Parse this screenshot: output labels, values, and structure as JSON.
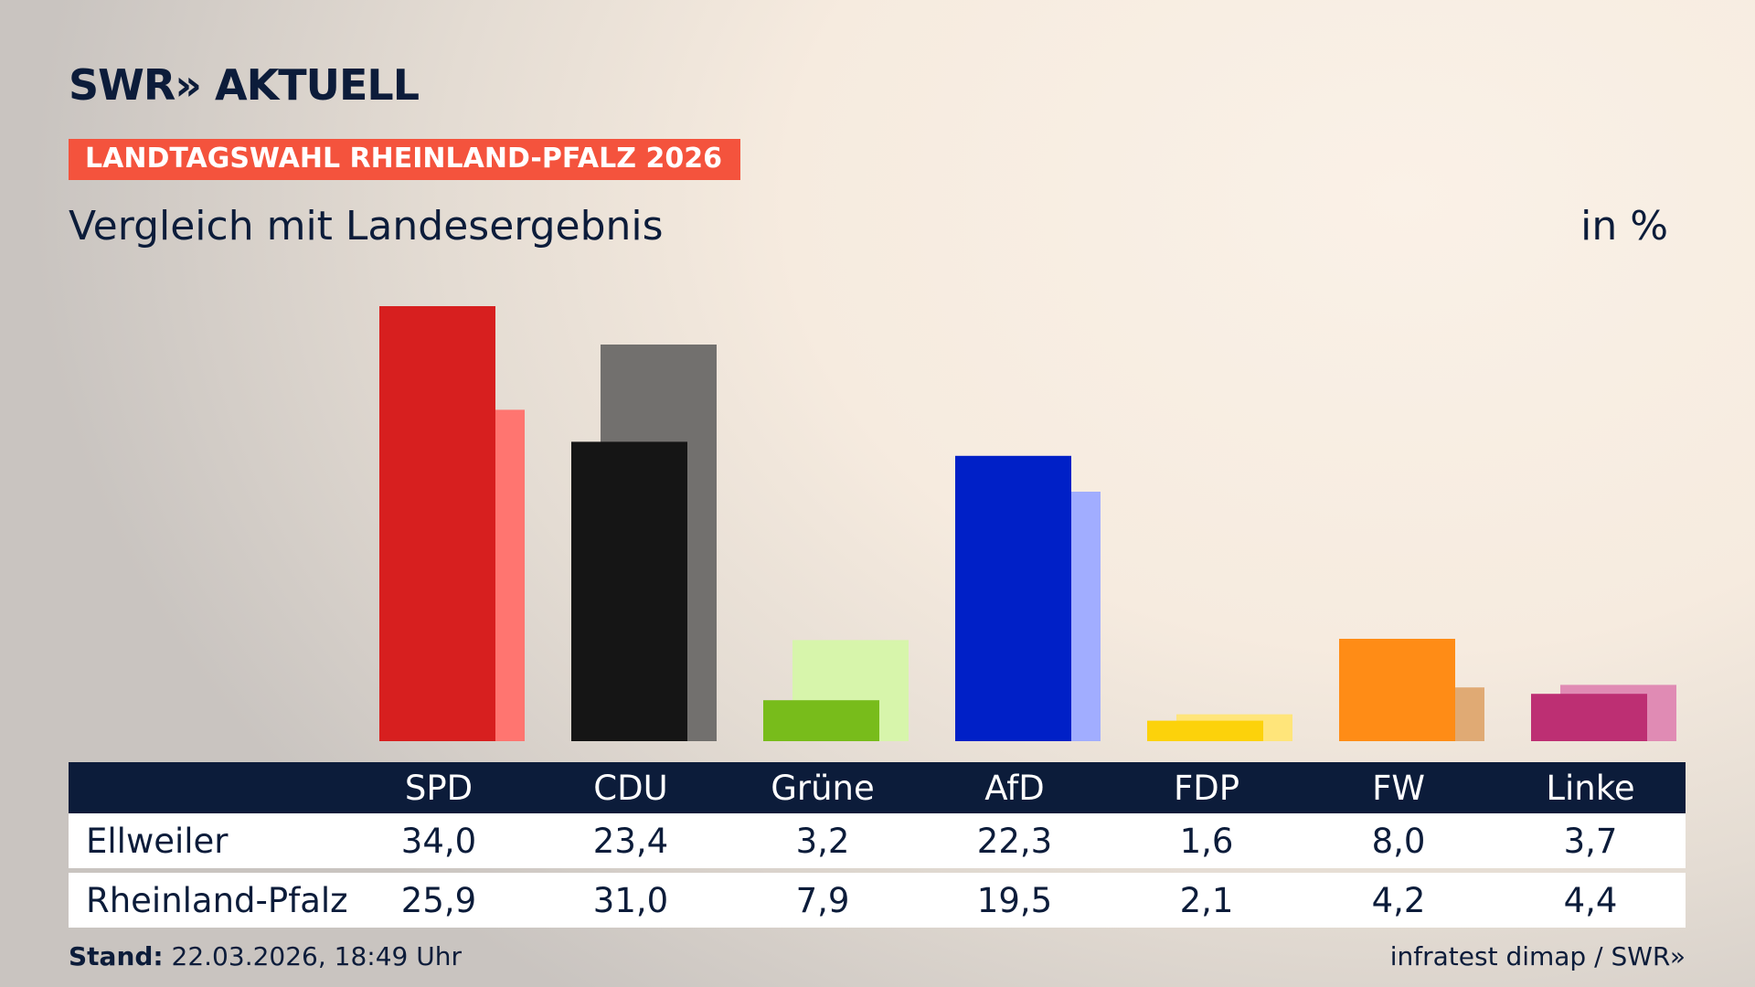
{
  "chart_data": {
    "type": "bar",
    "brand": "SWR» AKTUELL",
    "kicker": "LANDTAGSWAHL RHEINLAND-PFALZ 2026",
    "title": "Vergleich mit Landesergebnis",
    "unit_label": "in %",
    "categories": [
      "SPD",
      "CDU",
      "Grüne",
      "AfD",
      "FDP",
      "FW",
      "Linke"
    ],
    "series": [
      {
        "name": "Ellweiler",
        "colors": [
          "#d71f1f",
          "#151515",
          "#78bc1b",
          "#0020c7",
          "#fcd20b",
          "#ff8c16",
          "#bd2f73"
        ],
        "values": [
          34.0,
          23.4,
          3.2,
          22.3,
          1.6,
          8.0,
          3.7
        ],
        "value_labels": [
          "34,0",
          "23,4",
          "3,2",
          "22,3",
          "1,6",
          "8,0",
          "3,7"
        ]
      },
      {
        "name": "Rheinland-Pfalz",
        "colors": [
          "#ff7570",
          "#72706e",
          "#d7f5ab",
          "#a1adff",
          "#ffe57a",
          "#e0aa74",
          "#e08bb4"
        ],
        "values": [
          25.9,
          31.0,
          7.9,
          19.5,
          2.1,
          4.2,
          4.4
        ],
        "value_labels": [
          "25,9",
          "31,0",
          "7,9",
          "19,5",
          "2,1",
          "4,2",
          "4,4"
        ]
      }
    ],
    "footer": {
      "stand_label": "Stand:",
      "stand": "22.03.2026, 18:49 Uhr"
    },
    "source": "infratest dimap / SWR»"
  }
}
